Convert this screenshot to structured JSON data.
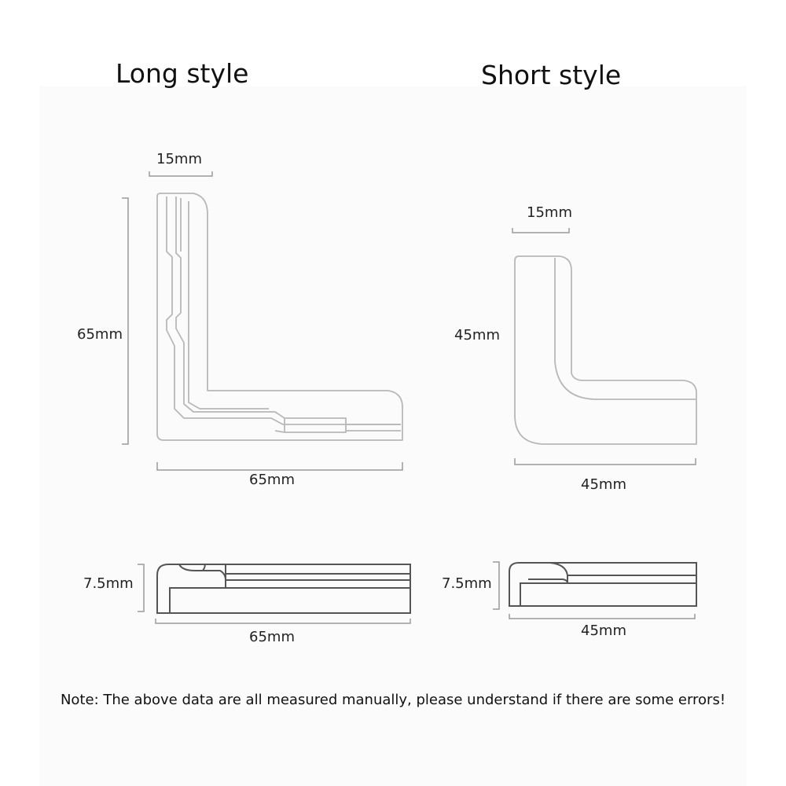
{
  "long_style": {
    "title": "Long style",
    "width_label": "15mm",
    "height_label": "65mm",
    "length_label": "65mm",
    "thickness_label": "7.5mm",
    "side_length_label": "65mm"
  },
  "short_style": {
    "title": "Short style",
    "width_label": "15mm",
    "height_label": "45mm",
    "length_label": "45mm",
    "thickness_label": "7.5mm",
    "side_length_label": "45mm"
  },
  "note": "Note: The above data are all measured manually, please understand if there are some errors!",
  "colors": {
    "outline_light": "#b4b4b4",
    "outline_dark": "#555555",
    "dimension_line": "#9a9a9a"
  }
}
